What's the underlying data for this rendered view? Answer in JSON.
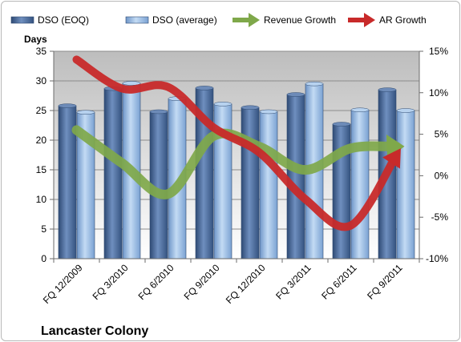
{
  "company_name": "Lancaster Colony",
  "chart_data": {
    "type": "bar",
    "categories": [
      "FQ 12/2009",
      "FQ 3/2010",
      "FQ 6/2010",
      "FQ 9/2010",
      "FQ 12/2010",
      "FQ 3/2011",
      "FQ 6/2011",
      "FQ 9/2011"
    ],
    "ylabel": "Days",
    "ylim": [
      0,
      35
    ],
    "yticks": [
      0,
      5,
      10,
      15,
      20,
      25,
      30,
      35
    ],
    "y2lim": [
      -10,
      15
    ],
    "y2ticks": [
      "-10%",
      "-5%",
      "0%",
      "5%",
      "10%",
      "15%"
    ],
    "y2tick_values": [
      -10,
      -5,
      0,
      5,
      10,
      15
    ],
    "grid": true,
    "legend_position": "top",
    "series": [
      {
        "name": "DSO (EOQ)",
        "kind": "bar",
        "axis": "left",
        "color": "#4a6b99",
        "values": [
          25.8,
          28.7,
          24.8,
          28.8,
          25.5,
          27.7,
          22.7,
          28.5
        ]
      },
      {
        "name": "DSO (average)",
        "kind": "bar",
        "axis": "left",
        "color": "#8fb4e0",
        "values": [
          24.7,
          29.6,
          27.0,
          26.1,
          24.8,
          29.5,
          25.1,
          25.0
        ]
      },
      {
        "name": "Revenue Growth",
        "kind": "line-arrow",
        "axis": "right",
        "color": "#7fa84a",
        "values": [
          5.5,
          1.5,
          -2.2,
          4.8,
          3.5,
          0.7,
          3.3,
          3.5
        ]
      },
      {
        "name": "AR Growth",
        "kind": "line-arrow",
        "axis": "right",
        "color": "#c82a2a",
        "values": [
          14.0,
          10.5,
          10.7,
          5.8,
          2.8,
          -2.8,
          -6.0,
          2.5
        ]
      }
    ]
  }
}
